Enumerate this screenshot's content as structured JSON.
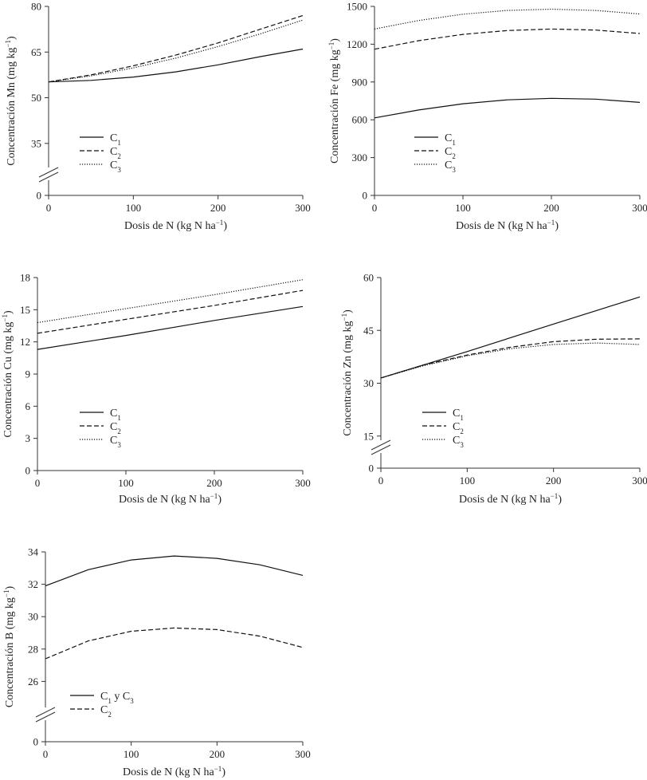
{
  "chart_data": [
    {
      "type": "line",
      "id": "mn",
      "ylabel": "Concentración Mn (mg kg",
      "ylabel_sup": "−1",
      "xlabel": "Dosis de N (kg N ha",
      "xlabel_sup": "−1",
      "xlim": [
        0,
        300
      ],
      "ylim": [
        0,
        80
      ],
      "axis_break": true,
      "break_low": 25,
      "xticks": [
        0,
        100,
        200,
        300
      ],
      "yticks": [
        0,
        35,
        50,
        65,
        80
      ],
      "legend_position": "bottom-left",
      "series": [
        {
          "name": "C",
          "sub": "1",
          "dash": "solid",
          "x": [
            0,
            50,
            100,
            150,
            200,
            250,
            300
          ],
          "y": [
            55.2,
            55.7,
            56.8,
            58.5,
            60.8,
            63.5,
            66.0
          ]
        },
        {
          "name": "C",
          "sub": "2",
          "dash": "dashed",
          "x": [
            0,
            50,
            100,
            150,
            200,
            250,
            300
          ],
          "y": [
            55.2,
            57.5,
            60.5,
            64.0,
            68.0,
            72.5,
            77.0
          ]
        },
        {
          "name": "C",
          "sub": "3",
          "dash": "dotted",
          "x": [
            0,
            50,
            100,
            150,
            200,
            250,
            300
          ],
          "y": [
            55.2,
            57.2,
            59.8,
            63.0,
            66.8,
            71.0,
            75.5
          ]
        }
      ]
    },
    {
      "type": "line",
      "id": "fe",
      "ylabel": "Concentración Fe (mg kg",
      "ylabel_sup": "−1",
      "xlabel": "Dosis de N (kg N ha",
      "xlabel_sup": "−1",
      "xlim": [
        0,
        300
      ],
      "ylim": [
        0,
        1500
      ],
      "axis_break": false,
      "xticks": [
        0,
        100,
        200,
        300
      ],
      "yticks": [
        0,
        300,
        600,
        900,
        1200,
        1500
      ],
      "legend_position": "bottom-left",
      "series": [
        {
          "name": "C",
          "sub": "1",
          "dash": "solid",
          "x": [
            0,
            50,
            100,
            150,
            200,
            250,
            300
          ],
          "y": [
            615,
            678,
            727,
            758,
            770,
            764,
            738
          ]
        },
        {
          "name": "C",
          "sub": "2",
          "dash": "dashed",
          "x": [
            0,
            50,
            100,
            150,
            200,
            250,
            300
          ],
          "y": [
            1160,
            1228,
            1278,
            1308,
            1320,
            1312,
            1285
          ]
        },
        {
          "name": "C",
          "sub": "3",
          "dash": "dotted",
          "x": [
            0,
            50,
            100,
            150,
            200,
            250,
            300
          ],
          "y": [
            1320,
            1388,
            1438,
            1468,
            1478,
            1468,
            1440
          ]
        }
      ]
    },
    {
      "type": "line",
      "id": "cu",
      "ylabel": "Concentración Cu (mg kg",
      "ylabel_sup": "−1",
      "xlabel": "Dosis de N (kg N ha",
      "xlabel_sup": "−1",
      "xlim": [
        0,
        300
      ],
      "ylim": [
        0,
        18
      ],
      "axis_break": false,
      "xticks": [
        0,
        100,
        200,
        300
      ],
      "yticks": [
        0,
        3,
        6,
        9,
        12,
        15,
        18
      ],
      "legend_position": "bottom-left",
      "series": [
        {
          "name": "C",
          "sub": "1",
          "dash": "solid",
          "x": [
            0,
            100,
            200,
            300
          ],
          "y": [
            11.3,
            12.6,
            14.0,
            15.3
          ]
        },
        {
          "name": "C",
          "sub": "2",
          "dash": "dashed",
          "x": [
            0,
            100,
            200,
            300
          ],
          "y": [
            12.8,
            14.1,
            15.4,
            16.8
          ]
        },
        {
          "name": "C",
          "sub": "3",
          "dash": "dotted",
          "x": [
            0,
            100,
            200,
            300
          ],
          "y": [
            13.8,
            15.1,
            16.4,
            17.8
          ]
        }
      ]
    },
    {
      "type": "line",
      "id": "zn",
      "ylabel": "Concentración Zn (mg kg",
      "ylabel_sup": "−1",
      "xlabel": "Dosis de N (kg N ha",
      "xlabel_sup": "−1",
      "xlim": [
        0,
        300
      ],
      "ylim": [
        0,
        60
      ],
      "axis_break": true,
      "break_low": 12,
      "xticks": [
        0,
        100,
        200,
        300
      ],
      "yticks": [
        0,
        15,
        30,
        45,
        60
      ],
      "legend_position": "bottom-left",
      "series": [
        {
          "name": "C",
          "sub": "1",
          "dash": "solid",
          "x": [
            0,
            100,
            200,
            300
          ],
          "y": [
            31.5,
            39.0,
            46.8,
            54.5
          ]
        },
        {
          "name": "C",
          "sub": "2",
          "dash": "dashed",
          "x": [
            0,
            50,
            100,
            150,
            200,
            250,
            300
          ],
          "y": [
            31.5,
            35.2,
            38.0,
            40.2,
            41.8,
            42.5,
            42.6
          ]
        },
        {
          "name": "C",
          "sub": "3",
          "dash": "dotted",
          "x": [
            0,
            50,
            100,
            150,
            200,
            250,
            300
          ],
          "y": [
            31.5,
            35.0,
            37.8,
            39.8,
            41.0,
            41.4,
            41.0
          ]
        }
      ]
    },
    {
      "type": "line",
      "id": "b",
      "ylabel": "Concentración B (mg kg",
      "ylabel_sup": "−1",
      "xlabel": "Dosis de N (kg N ha",
      "xlabel_sup": "−1",
      "xlim": [
        0,
        300
      ],
      "ylim": [
        0,
        34
      ],
      "axis_break": true,
      "break_low": 24,
      "xticks": [
        0,
        100,
        200,
        300
      ],
      "yticks": [
        0,
        26,
        28,
        30,
        32,
        34
      ],
      "legend_position": "bottom-left",
      "series": [
        {
          "name": "C",
          "sub": "1",
          "name2": " y C",
          "sub2": "3",
          "dash": "solid",
          "x": [
            0,
            50,
            100,
            150,
            200,
            250,
            300
          ],
          "y": [
            31.9,
            32.9,
            33.5,
            33.75,
            33.6,
            33.2,
            32.55
          ]
        },
        {
          "name": "C",
          "sub": "2",
          "dash": "dashed",
          "x": [
            0,
            50,
            100,
            150,
            200,
            250,
            300
          ],
          "y": [
            27.4,
            28.5,
            29.1,
            29.3,
            29.2,
            28.8,
            28.1
          ]
        }
      ]
    }
  ]
}
